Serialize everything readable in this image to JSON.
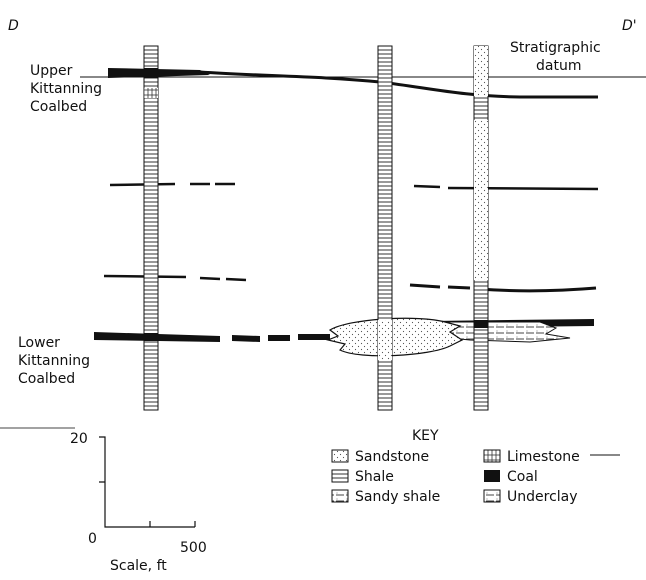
{
  "section": {
    "left_label": "D",
    "right_label": "D'",
    "upper_coal": [
      "Upper",
      "Kittanning",
      "Coalbed"
    ],
    "datum": [
      "Stratigraphic",
      "datum"
    ],
    "lower_coal": [
      "Lower",
      "Kittanning",
      "Coalbed"
    ]
  },
  "key": {
    "title": "KEY",
    "items": [
      "Sandstone",
      "Shale",
      "Sandy shale",
      "Limestone",
      "Coal",
      "Underclay"
    ]
  },
  "scale": {
    "vertical_top": "20",
    "origin": "0",
    "horizontal_end": "500",
    "caption": "Scale, ft"
  }
}
